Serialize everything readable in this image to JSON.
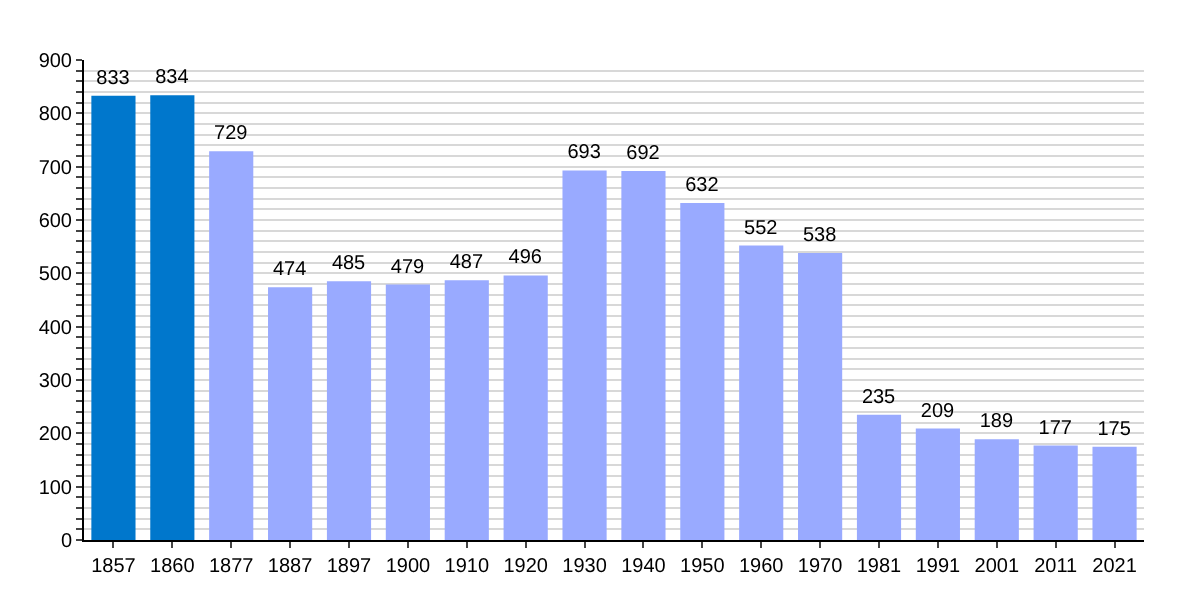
{
  "chart_data": {
    "type": "bar",
    "categories": [
      "1857",
      "1860",
      "1877",
      "1887",
      "1897",
      "1900",
      "1910",
      "1920",
      "1930",
      "1940",
      "1950",
      "1960",
      "1970",
      "1981",
      "1991",
      "2001",
      "2011",
      "2021"
    ],
    "values": [
      833,
      834,
      729,
      474,
      485,
      479,
      487,
      496,
      693,
      692,
      632,
      552,
      538,
      235,
      209,
      189,
      177,
      175
    ],
    "colors": [
      "#0077cc",
      "#0077cc",
      "#99aaff",
      "#99aaff",
      "#99aaff",
      "#99aaff",
      "#99aaff",
      "#99aaff",
      "#99aaff",
      "#99aaff",
      "#99aaff",
      "#99aaff",
      "#99aaff",
      "#99aaff",
      "#99aaff",
      "#99aaff",
      "#99aaff",
      "#99aaff"
    ],
    "ylim": [
      0,
      900
    ],
    "yticks": [
      0,
      {
        "value": 20,
        "label": null
      },
      {
        "value": 40,
        "label": null
      },
      {
        "value": 60,
        "label": null
      },
      {
        "value": 80,
        "label": null
      },
      100,
      {
        "value": 120,
        "label": null
      },
      {
        "value": 140,
        "label": null
      },
      {
        "value": 160,
        "label": null
      },
      {
        "value": 180,
        "label": null
      },
      200,
      {
        "value": 220,
        "label": null
      },
      {
        "value": 240,
        "label": null
      },
      {
        "value": 260,
        "label": null
      },
      {
        "value": 280,
        "label": null
      },
      300,
      {
        "value": 320,
        "label": null
      },
      {
        "value": 340,
        "label": null
      },
      {
        "value": 360,
        "label": null
      },
      {
        "value": 380,
        "label": null
      },
      400,
      {
        "value": 420,
        "label": null
      },
      {
        "value": 440,
        "label": null
      },
      {
        "value": 460,
        "label": null
      },
      {
        "value": 480,
        "label": null
      },
      500,
      {
        "value": 520,
        "label": null
      },
      {
        "value": 540,
        "label": null
      },
      {
        "value": 560,
        "label": null
      },
      {
        "value": 580,
        "label": null
      },
      600,
      {
        "value": 620,
        "label": null
      },
      {
        "value": 640,
        "label": null
      },
      {
        "value": 660,
        "label": null
      },
      {
        "value": 680,
        "label": null
      },
      700,
      {
        "value": 720,
        "label": null
      },
      {
        "value": 740,
        "label": null
      },
      {
        "value": 760,
        "label": null
      },
      {
        "value": 780,
        "label": null
      },
      800,
      {
        "value": 820,
        "label": null
      },
      {
        "value": 840,
        "label": null
      },
      {
        "value": 860,
        "label": null
      },
      {
        "value": 880,
        "label": null
      },
      900
    ],
    "grid": "y",
    "data_labels": true
  }
}
